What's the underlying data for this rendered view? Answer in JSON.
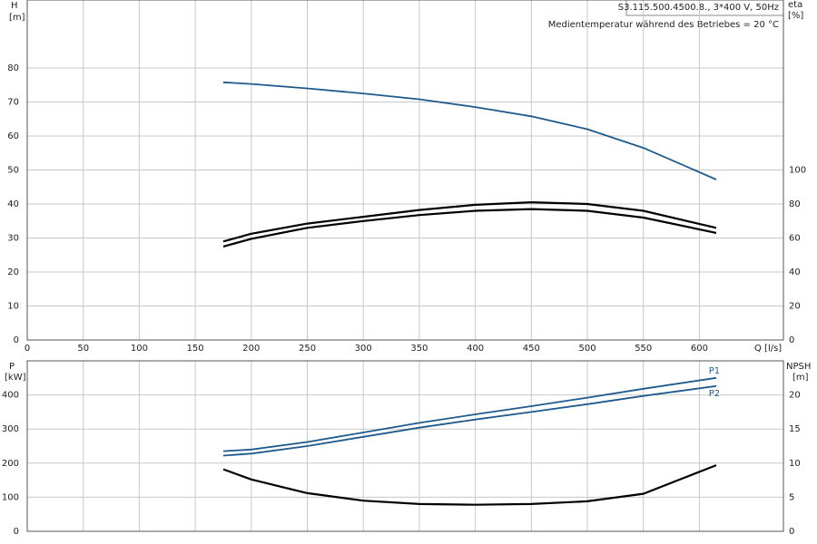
{
  "chart_data": [
    {
      "type": "line",
      "title": "S3.115.500.4500.8., 3*400 V, 50Hz",
      "subtitle": "Medientemperatur während des Betriebes = 20 °C",
      "xlabel": "Q [l/s]",
      "ylabel": "H",
      "yunit": "[m]",
      "y2label": "eta",
      "y2unit": "[%]",
      "x": [
        175,
        200,
        250,
        300,
        350,
        400,
        450,
        500,
        550,
        615
      ],
      "xlim": [
        0,
        675
      ],
      "xticks": [
        0,
        50,
        100,
        150,
        200,
        250,
        300,
        350,
        400,
        450,
        500,
        550,
        600
      ],
      "ylim": [
        0,
        100
      ],
      "yticks": [
        0,
        10,
        20,
        30,
        40,
        50,
        60,
        70,
        80
      ],
      "y2lim": [
        0,
        200
      ],
      "y2ticks": [
        0,
        20,
        40,
        60,
        80,
        100
      ],
      "grid": true,
      "series": [
        {
          "color": "#1f5a8c",
          "values": [
            75.8,
            75.3,
            74,
            72.5,
            70.8,
            68.5,
            65.8,
            62,
            56.5,
            47.2
          ]
        },
        {
          "color": "#000000",
          "axis": "y2",
          "values": [
            58,
            62.5,
            68.5,
            72.5,
            76.5,
            79.5,
            81,
            80,
            76,
            66
          ]
        },
        {
          "color": "#000000",
          "axis": "y2",
          "values": [
            55,
            59.5,
            66,
            70,
            73.5,
            76,
            77,
            76,
            72,
            63
          ]
        }
      ]
    },
    {
      "type": "line",
      "ylabel": "P",
      "yunit": "[kW]",
      "y2label": "NPSH",
      "y2unit": "[m]",
      "x": [
        175,
        200,
        250,
        300,
        350,
        400,
        450,
        500,
        550,
        615
      ],
      "ylim": [
        0,
        500
      ],
      "yticks": [
        0,
        100,
        200,
        300,
        400
      ],
      "y2lim": [
        0,
        25
      ],
      "y2ticks": [
        0,
        5,
        10,
        15,
        20
      ],
      "grid": true,
      "series": [
        {
          "name": "P1",
          "color": "#1f5a8c",
          "values": [
            235,
            240,
            262,
            290,
            318,
            343,
            367,
            392,
            418,
            450
          ]
        },
        {
          "name": "P2",
          "color": "#1f5a8c",
          "values": [
            222,
            228,
            250,
            277,
            304,
            328,
            350,
            373,
            397,
            426
          ]
        },
        {
          "color": "#000000",
          "axis": "y2",
          "values": [
            9.1,
            7.6,
            5.6,
            4.5,
            4.0,
            3.9,
            4.0,
            4.4,
            5.5,
            9.7
          ]
        }
      ]
    }
  ]
}
